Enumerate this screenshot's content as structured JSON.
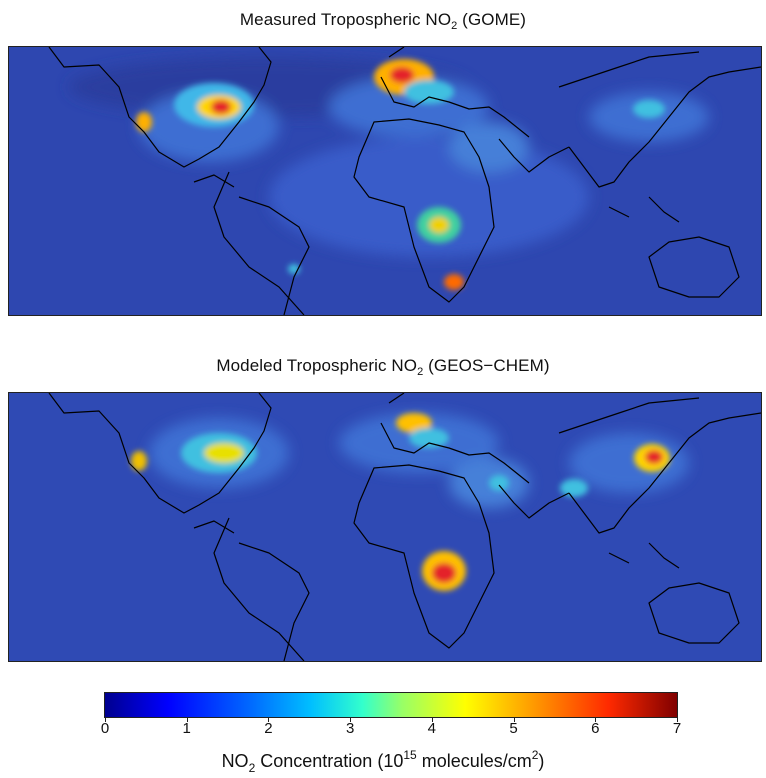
{
  "top_panel": {
    "title_prefix": "Measured Tropospheric NO",
    "title_sub": "2",
    "title_suffix": " (GOME)"
  },
  "bottom_panel": {
    "title_prefix": "Modeled Tropospheric NO",
    "title_sub": "2",
    "title_suffix": " (GEOS−CHEM)"
  },
  "colorbar": {
    "ticks": [
      "0",
      "1",
      "2",
      "3",
      "4",
      "5",
      "6",
      "7"
    ],
    "range": [
      0,
      7
    ],
    "label_prefix": "NO",
    "label_sub": "2",
    "label_mid": " Concentration (10",
    "label_sup": "15",
    "label_mid2": " molecules/cm",
    "label_sup2": "2",
    "label_suffix": ")",
    "colormap": "jet"
  },
  "colors": {
    "background_ocean": "#2b3fa6",
    "coastline": "#000000"
  }
}
